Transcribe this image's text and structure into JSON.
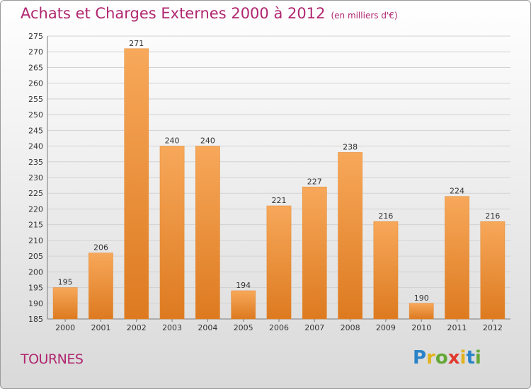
{
  "header": {
    "title": "Achats et Charges Externes 2000 à 2012",
    "subtitle": "(en milliers d'€)"
  },
  "footer": {
    "commune": "TOURNES",
    "logo": "Proxiti"
  },
  "colors": {
    "title": "#b0266f",
    "bar_light": "#f7a85a",
    "bar_dark": "#dd7a20"
  },
  "chart_data": {
    "type": "bar",
    "title": "Achats et Charges Externes 2000 à 2012",
    "subtitle": "(en milliers d'€)",
    "categories": [
      "2000",
      "2001",
      "2002",
      "2003",
      "2004",
      "2005",
      "2006",
      "2007",
      "2008",
      "2009",
      "2010",
      "2011",
      "2012"
    ],
    "values": [
      195,
      206,
      271,
      240,
      240,
      194,
      221,
      227,
      238,
      216,
      190,
      224,
      216
    ],
    "ylim": [
      185,
      275
    ],
    "yticks": [
      185,
      190,
      195,
      200,
      205,
      210,
      215,
      220,
      225,
      230,
      235,
      240,
      245,
      250,
      255,
      260,
      265,
      270,
      275
    ],
    "grid": "horizontal",
    "legend": "none"
  }
}
